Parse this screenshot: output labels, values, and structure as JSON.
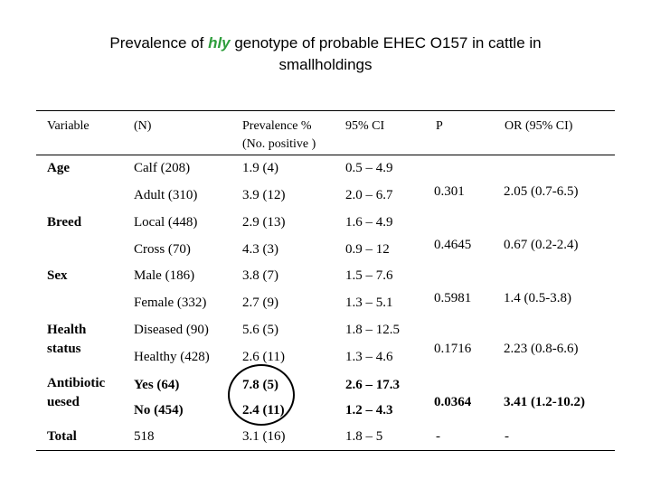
{
  "title": {
    "part1": "Prevalence of ",
    "emphasis": "hly",
    "part2": " genotype of probable EHEC O157 in cattle in",
    "line2": "smallholdings",
    "emphasis_color": "#2e9e3c"
  },
  "table": {
    "headers": {
      "variable": "Variable",
      "n": "(N)",
      "prevalence_line1": "Prevalence %",
      "prevalence_line2": "(No. positive )",
      "ci": "95% CI",
      "p": "P",
      "or": "OR (95% CI)"
    },
    "groups": [
      {
        "variable": "Age",
        "variable_line2": "",
        "rows": [
          {
            "n": "Calf (208)",
            "prevalence": "1.9 (4)",
            "ci": "0.5 – 4.9"
          },
          {
            "n": "Adult (310)",
            "prevalence": "3.9 (12)",
            "ci": "2.0 – 6.7"
          }
        ],
        "p": "0.301",
        "or": "2.05 (0.7-6.5)"
      },
      {
        "variable": "Breed",
        "variable_line2": "",
        "rows": [
          {
            "n": "Local (448)",
            "prevalence": "2.9 (13)",
            "ci": "1.6 – 4.9"
          },
          {
            "n": "Cross (70)",
            "prevalence": "4.3 (3)",
            "ci": "0.9 – 12"
          }
        ],
        "p": "0.4645",
        "or": "0.67 (0.2-2.4)"
      },
      {
        "variable": "Sex",
        "variable_line2": "",
        "rows": [
          {
            "n": "Male (186)",
            "prevalence": "3.8 (7)",
            "ci": "1.5 – 7.6"
          },
          {
            "n": "Female (332)",
            "prevalence": "2.7 (9)",
            "ci": "1.3 – 5.1"
          }
        ],
        "p": "0.5981",
        "or": "1.4 (0.5-3.8)"
      },
      {
        "variable": "Health",
        "variable_line2": "status",
        "rows": [
          {
            "n": "Diseased (90)",
            "prevalence": "5.6 (5)",
            "ci": "1.8 – 12.5"
          },
          {
            "n": "Healthy (428)",
            "prevalence": "2.6 (11)",
            "ci": "1.3 – 4.6"
          }
        ],
        "p": "0.1716",
        "or": "2.23 (0.8-6.6)"
      },
      {
        "variable": "Antibiotic",
        "variable_line2": "uesed",
        "rows": [
          {
            "n": "Yes (64)",
            "prevalence": "7.8 (5)",
            "ci": "2.6 – 17.3"
          },
          {
            "n": "No (454)",
            "prevalence": "2.4 (11)",
            "ci": "1.2 – 4.3"
          }
        ],
        "p": "0.0364",
        "or": "3.41 (1.2-10.2)"
      }
    ],
    "total": {
      "variable": "Total",
      "n": "518",
      "prevalence": "3.1 (16)",
      "ci": "1.8 – 5",
      "p": "-",
      "or": "-"
    }
  }
}
